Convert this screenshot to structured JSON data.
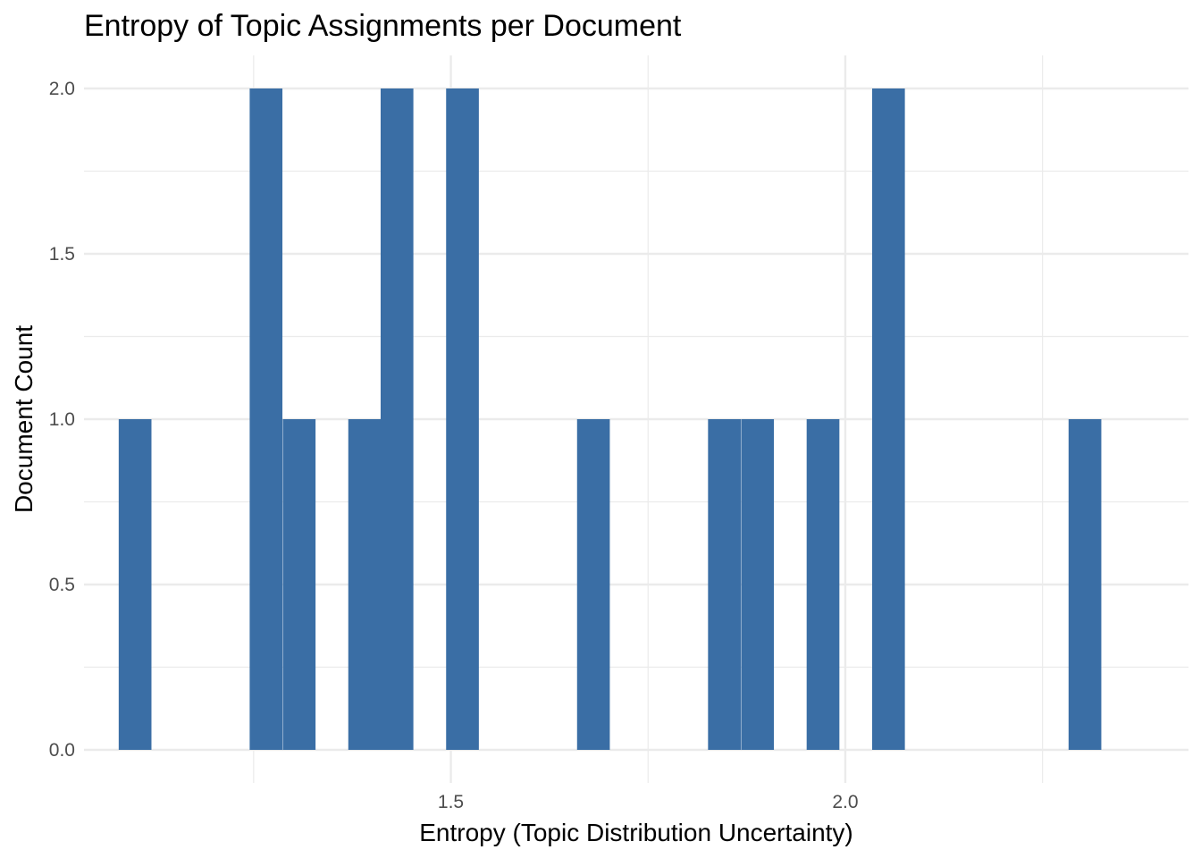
{
  "chart_data": {
    "type": "bar",
    "title": "Entropy of Topic Assignments per Document",
    "xlabel": "Entropy (Topic Distribution Uncertainty)",
    "ylabel": "Document Count",
    "bin_width": 0.0415,
    "bins": [
      {
        "x_start": 1.079,
        "count": 1
      },
      {
        "x_start": 1.245,
        "count": 2
      },
      {
        "x_start": 1.287,
        "count": 1
      },
      {
        "x_start": 1.37,
        "count": 1
      },
      {
        "x_start": 1.411,
        "count": 2
      },
      {
        "x_start": 1.494,
        "count": 2
      },
      {
        "x_start": 1.66,
        "count": 1
      },
      {
        "x_start": 1.826,
        "count": 1
      },
      {
        "x_start": 1.868,
        "count": 1
      },
      {
        "x_start": 1.951,
        "count": 1
      },
      {
        "x_start": 2.034,
        "count": 2
      },
      {
        "x_start": 2.283,
        "count": 1
      }
    ],
    "xlim": [
      1.035,
      2.435
    ],
    "ylim": [
      -0.1,
      2.1
    ],
    "x_ticks": [
      {
        "value": 1.5,
        "label": "1.5"
      },
      {
        "value": 2.0,
        "label": "2.0"
      }
    ],
    "x_minor_ticks": [
      1.25,
      1.75,
      2.25
    ],
    "y_ticks": [
      {
        "value": 0.0,
        "label": "0.0"
      },
      {
        "value": 0.5,
        "label": "0.5"
      },
      {
        "value": 1.0,
        "label": "1.0"
      },
      {
        "value": 1.5,
        "label": "1.5"
      },
      {
        "value": 2.0,
        "label": "2.0"
      }
    ],
    "y_minor_ticks": [
      0.25,
      0.75,
      1.25,
      1.75
    ],
    "grid": true,
    "bar_color": "#3a6ea5",
    "background": "#ffffff"
  }
}
